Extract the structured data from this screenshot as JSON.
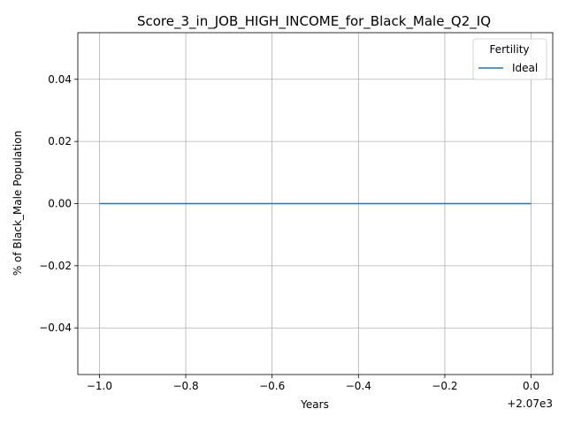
{
  "chart_data": {
    "type": "line",
    "title": "Score_3_in_JOB_HIGH_INCOME_for_Black_Male_Q2_IQ",
    "xlabel": "Years",
    "ylabel": "% of Black_Male Population",
    "x_offset_label": "+2.07e3",
    "xlim": [
      -1.05,
      0.05
    ],
    "ylim": [
      -0.055,
      0.055
    ],
    "x_ticks": [
      -1.0,
      -0.8,
      -0.6,
      -0.4,
      -0.2,
      0.0
    ],
    "x_tick_labels": [
      "−1.0",
      "−0.8",
      "−0.6",
      "−0.4",
      "−0.2",
      "0.0"
    ],
    "y_ticks": [
      -0.04,
      -0.02,
      0.0,
      0.02,
      0.04
    ],
    "y_tick_labels": [
      "−0.04",
      "−0.02",
      "0.00",
      "0.02",
      "0.04"
    ],
    "grid": true,
    "legend": {
      "title": "Fertility",
      "placement": "top-right"
    },
    "series": [
      {
        "name": "Ideal",
        "color": "#1f77b4",
        "x": [
          -1.0,
          0.0
        ],
        "y": [
          0.0,
          0.0
        ]
      }
    ]
  }
}
